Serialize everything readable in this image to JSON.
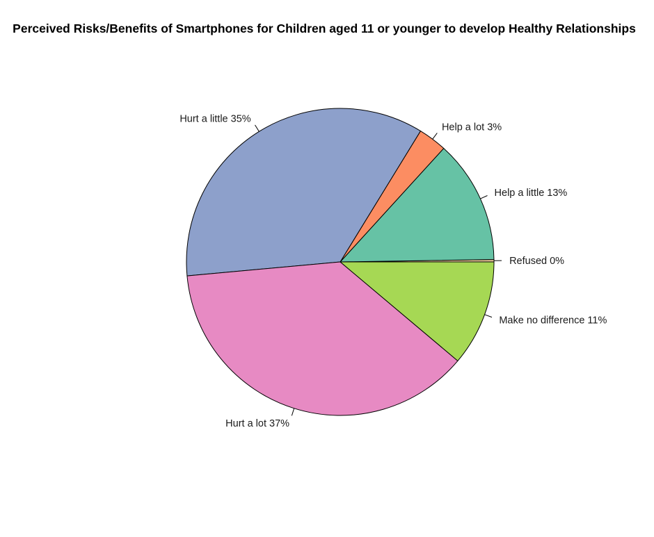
{
  "chart_data": {
    "type": "pie",
    "title": "Perceived Risks/Benefits of Smartphones for Children aged 11 or younger to develop Healthy Relationships",
    "direction": "counterclockwise",
    "start": "3 o'clock",
    "slices": [
      {
        "label": "Refused 0%",
        "value": 0.25,
        "color": "#e5c494"
      },
      {
        "label": "Help a little 13%",
        "value": 13.0,
        "color": "#66c2a5"
      },
      {
        "label": "Help a lot 3%",
        "value": 3.0,
        "color": "#fc8d62"
      },
      {
        "label": "Hurt a little 35%",
        "value": 35.2,
        "color": "#8da0cb"
      },
      {
        "label": "Hurt a lot 37%",
        "value": 37.4,
        "color": "#e78ac3"
      },
      {
        "label": "Make no difference 11%",
        "value": 11.15,
        "color": "#a6d854"
      }
    ]
  }
}
